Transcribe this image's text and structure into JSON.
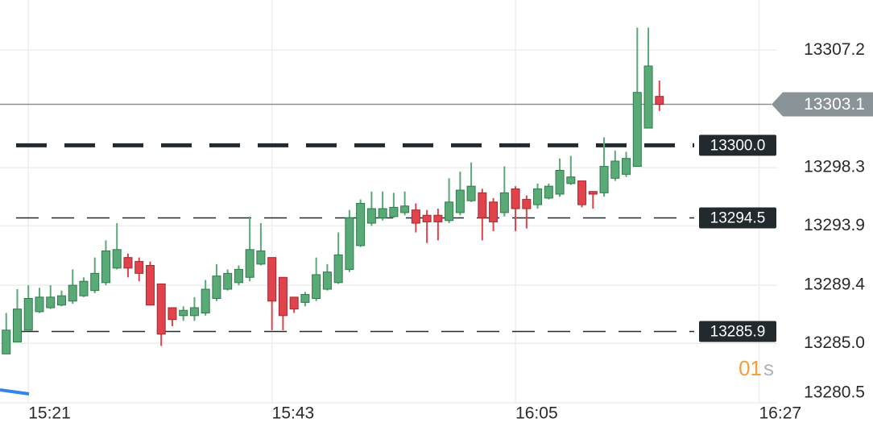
{
  "chart_data": {
    "type": "candlestick",
    "x": [
      "15:19",
      "15:20",
      "15:21",
      "15:22",
      "15:23",
      "15:24",
      "15:25",
      "15:26",
      "15:27",
      "15:28",
      "15:29",
      "15:30",
      "15:31",
      "15:32",
      "15:33",
      "15:34",
      "15:35",
      "15:36",
      "15:37",
      "15:38",
      "15:39",
      "15:40",
      "15:41",
      "15:42",
      "15:43",
      "15:44",
      "15:45",
      "15:46",
      "15:47",
      "15:48",
      "15:49",
      "15:50",
      "15:51",
      "15:52",
      "15:53",
      "15:54",
      "15:55",
      "15:56",
      "15:57",
      "15:58",
      "15:59",
      "16:00",
      "16:01",
      "16:02",
      "16:03",
      "16:04",
      "16:05",
      "16:06",
      "16:07",
      "16:08",
      "16:09",
      "16:10",
      "16:11",
      "16:12",
      "16:13",
      "16:14",
      "16:15",
      "16:16",
      "16:17",
      "16:18"
    ],
    "open": [
      13284.2,
      13285.1,
      13286.0,
      13287.4,
      13287.7,
      13287.9,
      13288.2,
      13288.6,
      13289.0,
      13289.6,
      13290.7,
      13291.5,
      13291.2,
      13290.9,
      13289.5,
      13287.7,
      13287.1,
      13287.1,
      13287.3,
      13288.4,
      13289.1,
      13289.6,
      13290.0,
      13291.0,
      13291.5,
      13290.0,
      13288.5,
      13288.1,
      13288.4,
      13289.1,
      13289.6,
      13290.6,
      13292.4,
      13294.1,
      13294.5,
      13294.6,
      13294.9,
      13295.1,
      13294.7,
      13294.7,
      13294.3,
      13294.9,
      13295.8,
      13296.4,
      13295.7,
      13294.9,
      13296.7,
      13295.9,
      13295.5,
      13296.0,
      13296.3,
      13297.1,
      13297.3,
      13296.5,
      13296.4,
      13297.5,
      13297.8,
      13298.4,
      13301.3,
      13303.7
    ],
    "high": [
      13287.3,
      13289.1,
      13289.4,
      13289.2,
      13289.4,
      13289.0,
      13290.6,
      13290.0,
      13291.5,
      13292.8,
      13294.1,
      13291.8,
      13291.5,
      13291.2,
      13289.5,
      13287.7,
      13287.8,
      13288.5,
      13289.8,
      13291.0,
      13290.6,
      13290.9,
      13294.6,
      13294.1,
      13291.5,
      13290.0,
      13288.5,
      13288.9,
      13291.5,
      13291.0,
      13293.4,
      13295.1,
      13295.9,
      13296.5,
      13296.5,
      13296.4,
      13296.5,
      13295.6,
      13295.1,
      13295.2,
      13297.5,
      13298.0,
      13298.7,
      13296.7,
      13296.0,
      13298.4,
      13296.9,
      13296.2,
      13297.1,
      13297.1,
      13299.0,
      13299.2,
      13297.3,
      13296.5,
      13300.6,
      13299.6,
      13299.5,
      13308.9,
      13308.9,
      13304.9
    ],
    "low": [
      13284.2,
      13285.1,
      13286.0,
      13287.3,
      13287.6,
      13287.8,
      13288.0,
      13288.5,
      13288.8,
      13289.4,
      13290.6,
      13290.0,
      13289.7,
      13287.9,
      13284.8,
      13286.3,
      13286.7,
      13286.7,
      13287.1,
      13288.2,
      13289.0,
      13289.4,
      13289.7,
      13290.9,
      13286.0,
      13286.0,
      13287.3,
      13287.8,
      13288.2,
      13289.0,
      13289.5,
      13290.4,
      13292.3,
      13293.9,
      13294.3,
      13294.5,
      13294.7,
      13293.4,
      13292.6,
      13292.8,
      13294.1,
      13294.7,
      13295.7,
      13292.8,
      13293.5,
      13294.6,
      13293.5,
      13293.7,
      13295.2,
      13295.9,
      13296.1,
      13297.0,
      13295.3,
      13295.2,
      13296.1,
      13297.3,
      13297.6,
      13298.4,
      13301.3,
      13302.6
    ],
    "close": [
      13286.0,
      13287.6,
      13288.4,
      13288.5,
      13288.5,
      13288.6,
      13289.4,
      13289.7,
      13290.3,
      13292.0,
      13292.1,
      13290.7,
      13290.3,
      13287.9,
      13285.7,
      13286.8,
      13287.5,
      13287.7,
      13289.1,
      13290.1,
      13290.3,
      13290.6,
      13292.1,
      13292.0,
      13288.2,
      13287.1,
      13287.6,
      13288.7,
      13290.2,
      13290.4,
      13291.7,
      13294.5,
      13295.6,
      13295.2,
      13295.2,
      13295.3,
      13295.4,
      13294.1,
      13294.2,
      13294.2,
      13295.7,
      13296.6,
      13296.9,
      13294.5,
      13294.2,
      13296.4,
      13295.2,
      13295.2,
      13296.7,
      13296.9,
      13298.1,
      13297.6,
      13295.5,
      13296.3,
      13298.4,
      13298.8,
      13299.0,
      13304.0,
      13306.0,
      13303.1
    ],
    "up_color": "#5aaa78",
    "down_color": "#e0434b",
    "xlim": [
      "15:18",
      "16:29"
    ],
    "xticks": [
      "15:21",
      "15:43",
      "16:05",
      "16:27"
    ],
    "ylim": [
      13280.5,
      13311.0
    ],
    "yticks": [
      13280.5,
      {
        "value": 13285,
        "label": "13285.0"
      },
      13289.4,
      13293.9,
      13298.3,
      13307.2
    ],
    "grid": true,
    "levels": [
      {
        "value": 13300,
        "label": "13300.0",
        "style": "bold"
      },
      {
        "value": 13294.5,
        "style": "thin"
      },
      {
        "value": 13285.9,
        "style": "thin"
      }
    ],
    "last_price": 13303.1,
    "countdown": {
      "number": "01",
      "unit": "s"
    }
  }
}
